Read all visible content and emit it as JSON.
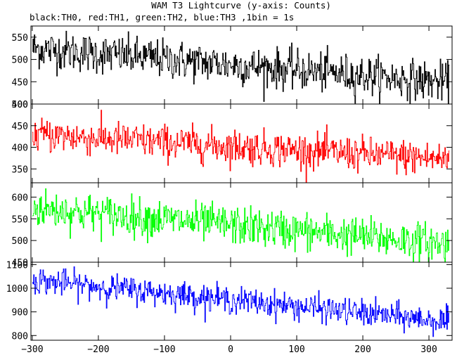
{
  "chart_data": {
    "type": "line",
    "title": "WAM T3 Lightcurve (y-axis: Counts)",
    "subtitle": "black:TH0, red:TH1, green:TH2, blue:TH3 ,1bin = 1s",
    "xlabel": "",
    "ylabel": "",
    "xlim": [
      -302,
      335
    ],
    "x_ticks": [
      -300,
      -200,
      -100,
      0,
      100,
      200,
      300
    ],
    "grid": false,
    "legend": "none",
    "x_sampling": {
      "start": -300,
      "end": 330,
      "step": 1
    },
    "series": [
      {
        "color": "#000000",
        "ylim": [
          400,
          575
        ],
        "y_ticks": [
          400,
          450,
          500,
          550
        ],
        "trend_start": 525,
        "trend_end": 448,
        "noise_sd": 22
      },
      {
        "color": "#ff0000",
        "ylim": [
          318,
          500
        ],
        "y_ticks": [
          350,
          400,
          450,
          500
        ],
        "trend_start": 430,
        "trend_end": 372,
        "noise_sd": 20
      },
      {
        "color": "#00ff00",
        "ylim": [
          450,
          633
        ],
        "y_ticks": [
          450,
          500,
          550,
          600
        ],
        "trend_start": 575,
        "trend_end": 492,
        "noise_sd": 22
      },
      {
        "color": "#0000ff",
        "ylim": [
          780,
          1110
        ],
        "y_ticks": [
          800,
          900,
          1000,
          1100
        ],
        "trend_start": 1035,
        "trend_end": 858,
        "noise_sd": 28
      }
    ]
  }
}
